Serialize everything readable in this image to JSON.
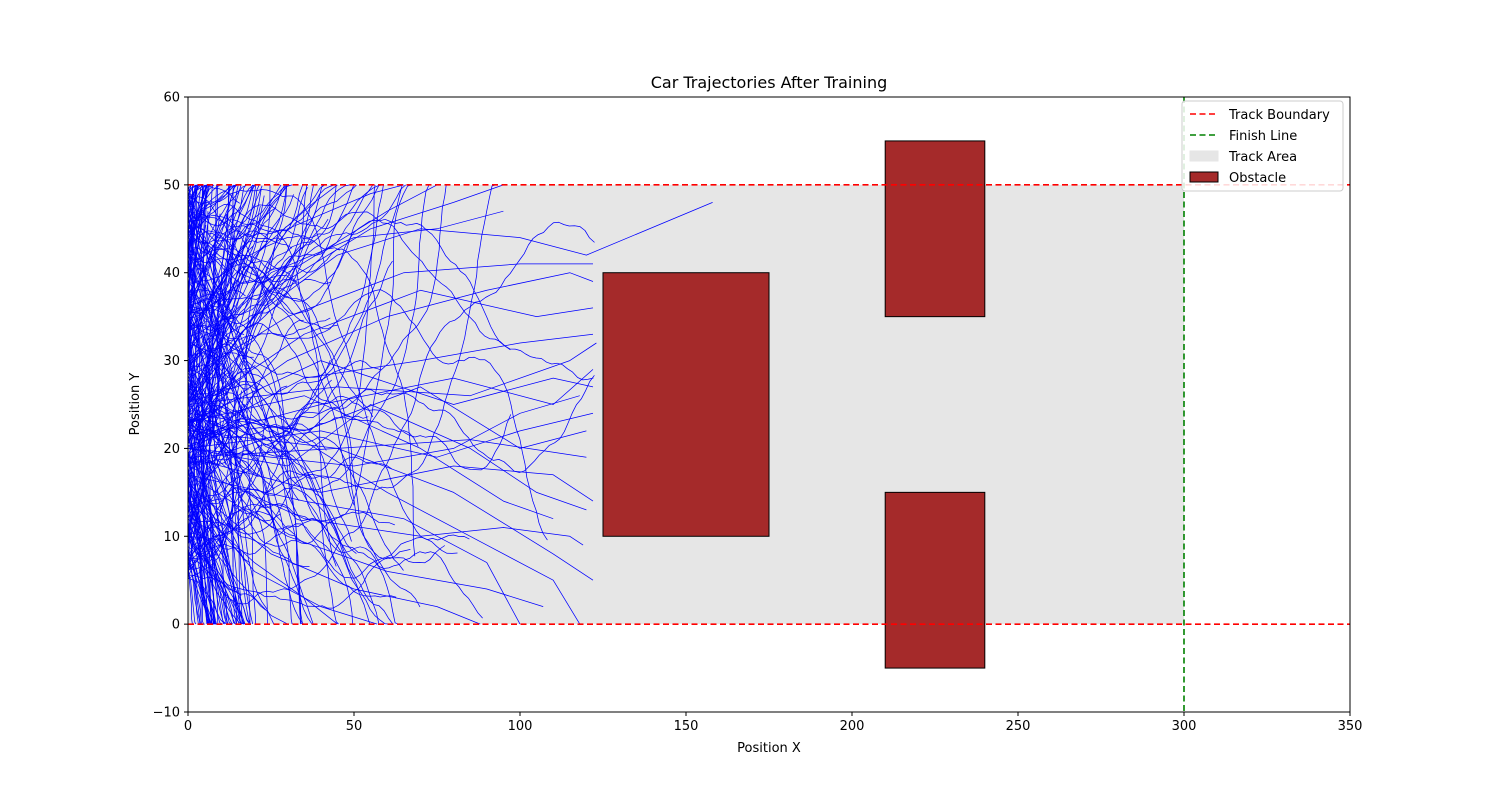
{
  "chart_data": {
    "type": "line",
    "title": "Car Trajectories After Training",
    "xlabel": "Position X",
    "ylabel": "Position Y",
    "xlim": [
      0,
      350
    ],
    "ylim": [
      -10,
      60
    ],
    "xticks": [
      0,
      50,
      100,
      150,
      200,
      250,
      300,
      350
    ],
    "yticks": [
      -10,
      0,
      10,
      20,
      30,
      40,
      50,
      60
    ],
    "grid": false,
    "legend_position": "top-right",
    "track_area": {
      "x": [
        0,
        300
      ],
      "y": [
        0,
        50
      ],
      "color": "#e6e6e6",
      "label": "Track Area"
    },
    "track_boundaries": {
      "y": [
        0,
        50
      ],
      "color": "#ff0000",
      "style": "dashed",
      "label": "Track Boundary"
    },
    "finish_line": {
      "x": 300,
      "color": "#008000",
      "style": "dashed",
      "label": "Finish Line"
    },
    "obstacles": {
      "label": "Obstacle",
      "color": "#a52a2a",
      "rects": [
        {
          "x": [
            125,
            175
          ],
          "y": [
            10,
            40
          ]
        },
        {
          "x": [
            210,
            240
          ],
          "y": [
            35,
            55
          ]
        },
        {
          "x": [
            210,
            240
          ],
          "y": [
            -5,
            15
          ]
        }
      ]
    },
    "trajectory_style": {
      "color": "#0000ff",
      "count": 300
    },
    "trajectories": [
      [
        [
          0,
          25
        ],
        [
          20,
          35
        ],
        [
          45,
          42
        ],
        [
          70,
          45
        ],
        [
          100,
          44
        ],
        [
          120,
          42
        ],
        [
          158,
          48
        ]
      ],
      [
        [
          0,
          25
        ],
        [
          30,
          40
        ],
        [
          60,
          47
        ],
        [
          75,
          50
        ]
      ],
      [
        [
          0,
          24
        ],
        [
          25,
          38
        ],
        [
          55,
          45
        ],
        [
          80,
          48
        ],
        [
          95,
          50
        ]
      ],
      [
        [
          0,
          22
        ],
        [
          30,
          30
        ],
        [
          60,
          35
        ],
        [
          90,
          38
        ],
        [
          115,
          40
        ],
        [
          122,
          39
        ]
      ],
      [
        [
          0,
          21
        ],
        [
          35,
          28
        ],
        [
          70,
          30
        ],
        [
          100,
          32
        ],
        [
          122,
          33
        ]
      ],
      [
        [
          0,
          20
        ],
        [
          40,
          22
        ],
        [
          75,
          19
        ],
        [
          100,
          22
        ],
        [
          122,
          24
        ]
      ],
      [
        [
          0,
          19
        ],
        [
          40,
          15
        ],
        [
          80,
          18
        ],
        [
          110,
          17
        ],
        [
          122,
          14
        ]
      ],
      [
        [
          0,
          18
        ],
        [
          35,
          12
        ],
        [
          70,
          10
        ],
        [
          95,
          11
        ],
        [
          115,
          10
        ],
        [
          119,
          9
        ]
      ],
      [
        [
          0,
          17
        ],
        [
          30,
          10
        ],
        [
          60,
          6
        ],
        [
          90,
          4
        ],
        [
          107,
          2
        ]
      ],
      [
        [
          0,
          16
        ],
        [
          25,
          8
        ],
        [
          50,
          4
        ],
        [
          75,
          2
        ],
        [
          88,
          0
        ]
      ],
      [
        [
          0,
          15
        ],
        [
          20,
          6
        ],
        [
          40,
          2
        ],
        [
          57,
          0
        ]
      ],
      [
        [
          0,
          26
        ],
        [
          30,
          45
        ],
        [
          55,
          49
        ],
        [
          65,
          50
        ]
      ],
      [
        [
          0,
          23
        ],
        [
          40,
          30
        ],
        [
          80,
          25
        ],
        [
          110,
          28
        ],
        [
          122,
          27
        ]
      ],
      [
        [
          0,
          22
        ],
        [
          45,
          20
        ],
        [
          85,
          21
        ],
        [
          120,
          19
        ]
      ],
      [
        [
          0,
          20
        ],
        [
          30,
          18
        ],
        [
          55,
          25
        ],
        [
          85,
          20
        ],
        [
          105,
          15
        ],
        [
          120,
          13
        ]
      ],
      [
        [
          0,
          18
        ],
        [
          30,
          22
        ],
        [
          60,
          15
        ],
        [
          90,
          9
        ],
        [
          110,
          5
        ],
        [
          118,
          0
        ]
      ],
      [
        [
          0,
          30
        ],
        [
          25,
          40
        ],
        [
          50,
          44
        ],
        [
          75,
          45
        ],
        [
          95,
          47
        ]
      ],
      [
        [
          0,
          28
        ],
        [
          30,
          35
        ],
        [
          65,
          40
        ],
        [
          100,
          41
        ],
        [
          122,
          41
        ]
      ],
      [
        [
          0,
          24
        ],
        [
          35,
          33
        ],
        [
          70,
          38
        ],
        [
          105,
          35
        ],
        [
          122,
          36
        ]
      ],
      [
        [
          0,
          21
        ],
        [
          40,
          25
        ],
        [
          80,
          28
        ],
        [
          110,
          25
        ],
        [
          122,
          29
        ]
      ],
      [
        [
          0,
          19
        ],
        [
          45,
          20
        ],
        [
          80,
          15
        ],
        [
          110,
          8
        ],
        [
          122,
          5
        ]
      ],
      [
        [
          0,
          17
        ],
        [
          35,
          14
        ],
        [
          65,
          12
        ],
        [
          90,
          7
        ],
        [
          100,
          0
        ]
      ],
      [
        [
          0,
          27
        ],
        [
          20,
          42
        ],
        [
          38,
          48
        ],
        [
          45,
          50
        ]
      ],
      [
        [
          0,
          14
        ],
        [
          20,
          7
        ],
        [
          35,
          3
        ],
        [
          45,
          0
        ]
      ],
      [
        [
          0,
          12
        ],
        [
          15,
          5
        ],
        [
          25,
          1
        ],
        [
          30,
          0
        ]
      ],
      [
        [
          0,
          33
        ],
        [
          20,
          45
        ],
        [
          28,
          50
        ]
      ],
      [
        [
          0,
          10
        ],
        [
          10,
          5
        ],
        [
          16,
          0
        ]
      ],
      [
        [
          0,
          36
        ],
        [
          12,
          45
        ],
        [
          16,
          50
        ]
      ],
      [
        [
          0,
          25
        ],
        [
          45,
          27
        ],
        [
          85,
          26
        ],
        [
          115,
          30
        ],
        [
          123,
          32
        ]
      ],
      [
        [
          0,
          23
        ],
        [
          35,
          26
        ],
        [
          70,
          20
        ],
        [
          95,
          14
        ],
        [
          110,
          12
        ]
      ],
      [
        [
          0,
          20
        ],
        [
          50,
          18
        ],
        [
          80,
          20
        ],
        [
          100,
          24
        ],
        [
          118,
          26
        ]
      ],
      [
        [
          0,
          24
        ],
        [
          35,
          22
        ],
        [
          70,
          27
        ],
        [
          100,
          20
        ],
        [
          120,
          22
        ]
      ]
    ]
  },
  "legend": {
    "items": [
      {
        "label": "Track Boundary",
        "kind": "line",
        "color": "#ff0000",
        "dashed": true
      },
      {
        "label": "Finish Line",
        "kind": "line",
        "color": "#008000",
        "dashed": true
      },
      {
        "label": "Track Area",
        "kind": "patch",
        "color": "#e6e6e6",
        "edge": "#e6e6e6"
      },
      {
        "label": "Obstacle",
        "kind": "patch",
        "color": "#a52a2a",
        "edge": "#000000"
      }
    ]
  }
}
